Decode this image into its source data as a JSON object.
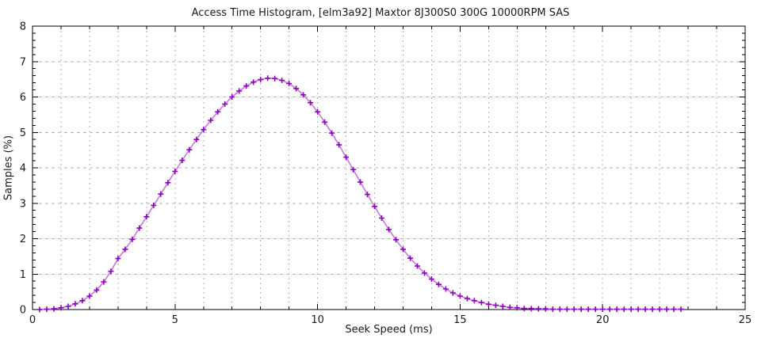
{
  "chart_data": {
    "type": "line",
    "title": "Access Time Histogram, [elm3a92] Maxtor 8J300S0 300G 10000RPM SAS",
    "xlabel": "Seek Speed (ms)",
    "ylabel": "Samples (%)",
    "xlim": [
      0,
      25
    ],
    "ylim": [
      0,
      8
    ],
    "x_tick_values": [
      0,
      5,
      10,
      15,
      20,
      25
    ],
    "x_tick_labels": [
      "0",
      "5",
      "10",
      "15",
      "20",
      "25"
    ],
    "y_tick_values": [
      0,
      1,
      2,
      3,
      4,
      5,
      6,
      7,
      8
    ],
    "y_tick_labels": [
      "0",
      "1",
      "2",
      "3",
      "4",
      "5",
      "6",
      "7",
      "8"
    ],
    "x_grid_step": 1,
    "x_minor_tick_step": 1,
    "y_minor_tick_step": 0.2,
    "grid": true,
    "legend": "none",
    "colors": {
      "line": "#c77fdb",
      "marker": "#9101c3",
      "grid": "#b5b5b5",
      "axis": "#000000"
    },
    "series": [
      {
        "name": "samples",
        "marker": "plus",
        "x": [
          0.25,
          0.5,
          0.75,
          1.0,
          1.25,
          1.5,
          1.75,
          2.0,
          2.25,
          2.5,
          2.75,
          3.0,
          3.25,
          3.5,
          3.75,
          4.0,
          4.25,
          4.5,
          4.75,
          5.0,
          5.25,
          5.5,
          5.75,
          6.0,
          6.25,
          6.5,
          6.75,
          7.0,
          7.25,
          7.5,
          7.75,
          8.0,
          8.25,
          8.5,
          8.75,
          9.0,
          9.25,
          9.5,
          9.75,
          10.0,
          10.25,
          10.5,
          10.75,
          11.0,
          11.25,
          11.5,
          11.75,
          12.0,
          12.25,
          12.5,
          12.75,
          13.0,
          13.25,
          13.5,
          13.75,
          14.0,
          14.25,
          14.5,
          14.75,
          15.0,
          15.25,
          15.5,
          15.75,
          16.0,
          16.25,
          16.5,
          16.75,
          17.0,
          17.25,
          17.5,
          17.75,
          18.0,
          18.25,
          18.5,
          18.75,
          19.0,
          19.25,
          19.5,
          19.75,
          20.0,
          20.25,
          20.5,
          20.75,
          21.0,
          21.25,
          21.5,
          21.75,
          22.0,
          22.25,
          22.5,
          22.75
        ],
        "y": [
          0.0,
          0.01,
          0.02,
          0.05,
          0.09,
          0.16,
          0.25,
          0.38,
          0.55,
          0.78,
          1.08,
          1.44,
          1.7,
          1.98,
          2.3,
          2.62,
          2.94,
          3.26,
          3.58,
          3.9,
          4.21,
          4.51,
          4.8,
          5.08,
          5.34,
          5.58,
          5.8,
          6.0,
          6.17,
          6.31,
          6.42,
          6.49,
          6.53,
          6.52,
          6.47,
          6.38,
          6.24,
          6.06,
          5.84,
          5.58,
          5.29,
          4.98,
          4.65,
          4.3,
          3.95,
          3.6,
          3.25,
          2.91,
          2.58,
          2.26,
          1.97,
          1.7,
          1.45,
          1.23,
          1.03,
          0.86,
          0.71,
          0.58,
          0.47,
          0.38,
          0.31,
          0.25,
          0.2,
          0.15,
          0.12,
          0.09,
          0.06,
          0.05,
          0.03,
          0.03,
          0.02,
          0.02,
          0.01,
          0.01,
          0.01,
          0.01,
          0.01,
          0.01,
          0.01,
          0.01,
          0.01,
          0.01,
          0.01,
          0.01,
          0.01,
          0.01,
          0.01,
          0.01,
          0.01,
          0.01,
          0.01
        ]
      }
    ]
  }
}
